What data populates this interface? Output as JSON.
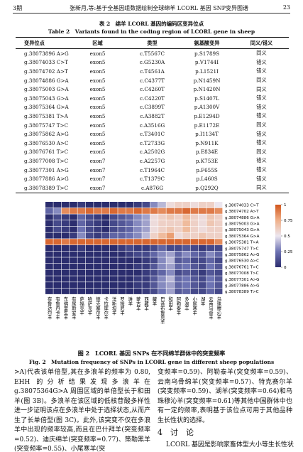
{
  "header": {
    "issue": "3期",
    "running_title": "张新月,等:基于全基因组数据绘制全球绵羊 LCORL 基因 SNP变异图谱",
    "page": "23"
  },
  "table": {
    "title_zh": "表 2　绵羊 LCORL 基因的编码区变异位点",
    "title_en": "Table 2　Variants found in the coding region of LCORL gene in sheep",
    "columns": [
      "变异位点",
      "区域",
      "类型",
      "氨基酸变异",
      "同义/错义"
    ],
    "rows": [
      [
        "g.38073896 A>G",
        "exon5",
        "c.T5567C",
        "p.S1789S",
        "同义"
      ],
      [
        "g.38074033 C>T",
        "exon5",
        "c.G5230A",
        "p.V1744I",
        "错义"
      ],
      [
        "g.38074702 A>T",
        "exon5",
        "c.T4561A",
        "p.L1521I",
        "错义"
      ],
      [
        "g.38074886 G>A",
        "exon5",
        "c.C4377T",
        "p.N1459N",
        "同义"
      ],
      [
        "g.38075003 G>A",
        "exon5",
        "c.C4260T",
        "p.N1420N",
        "同义"
      ],
      [
        "g.38075043 G>A",
        "exon5",
        "c.C4220T",
        "p.S1407L",
        "错义"
      ],
      [
        "g.38075364 G>A",
        "exon5",
        "c.C3899T",
        "p.A1300V",
        "错义"
      ],
      [
        "g.38075381 T>A",
        "exon5",
        "c.A3882T",
        "p.E1294D",
        "错义"
      ],
      [
        "g.38075747 T>C",
        "exon5",
        "c.A3516G",
        "p.E1172E",
        "同义"
      ],
      [
        "g.38075862 A>G",
        "exon5",
        "c.T3401C",
        "p.I1134T",
        "错义"
      ],
      [
        "g.38076530 A>C",
        "exon5",
        "c.T2733G",
        "p.N911K",
        "错义"
      ],
      [
        "g.38076761 T>C",
        "exon5",
        "c.A2502G",
        "p.E834E",
        "同义"
      ],
      [
        "g.38077008 T>C",
        "exon7",
        "c.A2257G",
        "p.K753E",
        "错义"
      ],
      [
        "g.38077301 A>G",
        "exon7",
        "c.T1964C",
        "p.F655S",
        "错义"
      ],
      [
        "g.38077886 A>G",
        "exon7",
        "c.T1379C",
        "p.L460S",
        "错义"
      ],
      [
        "g.38078389 T>C",
        "exon7",
        "c.A876G",
        "p.Q292Q",
        "同义"
      ]
    ]
  },
  "figure": {
    "type": "heatmap",
    "rows": [
      "g.38074033 C>T",
      "g.38074702 A>T",
      "g.38074886 G>A",
      "g.38075003 G>A",
      "g.38075043 G>A",
      "g.38075364 G>A",
      "g.38075381 T>A",
      "g.38075747 T>C",
      "g.38075862 A>G",
      "g.38076530 A>C",
      "g.38076761 T>C",
      "g.38077008 T>C",
      "g.38077301 A>G",
      "g.38077886 A>G",
      "g.38078389 T>C"
    ],
    "columns": [
      "有鲁达尔羊",
      "有鲁丹卡羊",
      "东佛里生羊",
      "有尾斯安羊",
      "萨福克羊",
      "哈萨克羊",
      "德克塞尔羊",
      "卡拉库尔羊",
      "洋斯坦羊",
      "罗姆尼羊",
      "滩羊",
      "蒙古羊",
      "西藏羊",
      "藏羊",
      "巴音布鲁克羊",
      "和田羊",
      "阿勒泰羊",
      "多浪羊",
      "小尾寒羊",
      "湖羊",
      "云南乌骨羊",
      "乌珠穆沁羊"
    ],
    "values": [
      [
        0,
        0,
        0,
        0,
        0.05,
        0,
        0,
        0,
        0,
        0,
        0,
        0.05,
        0.1,
        0.3,
        0.4,
        0.55,
        0.6,
        0.6,
        0.55,
        0.6,
        0.6,
        0.5
      ],
      [
        0.2,
        0.3,
        0.85,
        0.9,
        0.9,
        0.95,
        0.9,
        0.9,
        0.95,
        0.9,
        0.9,
        0.95,
        0.9,
        0.9,
        0.85,
        0.9,
        0.9,
        0.95,
        0.9,
        0.9,
        0.9,
        0.85
      ],
      [
        0,
        0.1,
        0.05,
        0,
        0.2,
        0.1,
        0.05,
        0,
        0.1,
        0.15,
        0.2,
        0.3,
        0.35,
        0.55,
        0.6,
        0.65,
        0.6,
        0.7,
        0.6,
        0.55,
        0.65,
        0.6
      ],
      [
        0,
        0.1,
        0.05,
        0,
        0.2,
        0.1,
        0.05,
        0,
        0.1,
        0.15,
        0.2,
        0.3,
        0.35,
        0.55,
        0.6,
        0.6,
        0.6,
        0.7,
        0.6,
        0.55,
        0.65,
        0.6
      ],
      [
        0,
        0.1,
        0.05,
        0,
        0.25,
        0.1,
        0.05,
        0,
        0.1,
        0.15,
        0.2,
        0.3,
        0.35,
        0.55,
        0.6,
        0.65,
        0.6,
        0.7,
        0.6,
        0.55,
        0.6,
        0.6
      ],
      [
        0,
        0,
        0,
        0.05,
        0.3,
        0.1,
        0.05,
        0.1,
        0.2,
        0.2,
        0.25,
        0.3,
        0.4,
        0.6,
        0.7,
        0.8,
        0.55,
        0.6,
        0.6,
        0.65,
        0.6,
        0.6
      ],
      [
        0.95,
        0.95,
        0.9,
        0.95,
        0.95,
        0.95,
        0.95,
        0.95,
        0.95,
        0.95,
        0.95,
        0.95,
        0.95,
        0.95,
        0.95,
        0.95,
        0.95,
        0.95,
        0.95,
        0.95,
        0.95,
        0.85
      ],
      [
        0,
        0,
        0,
        0,
        0.05,
        0,
        0,
        0,
        0,
        0.05,
        0.1,
        0.05,
        0.05,
        0.1,
        0.2,
        0.1,
        0.1,
        0.15,
        0.1,
        0.05,
        0.1,
        0.1
      ],
      [
        0,
        0,
        0,
        0,
        0,
        0,
        0,
        0,
        0,
        0,
        0.05,
        0.1,
        0.1,
        0.2,
        0.3,
        0.35,
        0.2,
        0.3,
        0.2,
        0.15,
        0.3,
        0.2
      ],
      [
        0,
        0,
        0,
        0,
        0,
        0,
        0,
        0,
        0,
        0,
        0,
        0,
        0.05,
        0.1,
        0.3,
        0.4,
        0.15,
        0.2,
        0.1,
        0.1,
        0.2,
        0.1
      ],
      [
        0,
        0,
        0,
        0,
        0,
        0,
        0,
        0,
        0,
        0,
        0,
        0.05,
        0.05,
        0.15,
        0.3,
        0.35,
        0.2,
        0.25,
        0.15,
        0.1,
        0.25,
        0.15
      ],
      [
        0,
        0,
        0,
        0,
        0,
        0,
        0,
        0,
        0,
        0,
        0,
        0,
        0.05,
        0.1,
        0.2,
        0.3,
        0.1,
        0.15,
        0.1,
        0.05,
        0.15,
        0.1
      ],
      [
        0,
        0,
        0,
        0,
        0,
        0,
        0,
        0,
        0,
        0,
        0,
        0.05,
        0.05,
        0.15,
        0.3,
        0.4,
        0.2,
        0.25,
        0.15,
        0.1,
        0.25,
        0.15
      ],
      [
        0,
        0,
        0,
        0,
        0,
        0,
        0,
        0,
        0,
        0,
        0,
        0.05,
        0.05,
        0.15,
        0.3,
        0.35,
        0.2,
        0.25,
        0.15,
        0.1,
        0.25,
        0.15
      ],
      [
        0,
        0,
        0,
        0,
        0,
        0,
        0,
        0,
        0,
        0,
        0,
        0,
        0.05,
        0.1,
        0.25,
        0.35,
        0.15,
        0.2,
        0.1,
        0.1,
        0.2,
        0.1
      ]
    ],
    "colorbar_ticks": [
      1,
      0.75,
      0.5,
      0.25,
      0
    ],
    "caption_zh": "图 2　LCORL 基因 SNPs 在不同绵羊群体中的突变频率",
    "caption_en": "Fig. 2　Mutation frequency of SNPs in LCORL gene in different sheep populations"
  },
  "body": {
    "left": ">A)代表该单倍型,其在多浪羊的频率为 0.80, EHH 的分析结果发现多浪羊在 g.38075364G>A 周围区域的单倍型长于和田羊(图 3B)。多浪羊在该区域的低核苷酸多样性进一步证明该点在多浪羊中处于选择状态,从而产生了长单倍型(图 3C)。此外,该突变不仅在多浪羊中出现的频率较高,而且在巴什拜羊(突变频率=0.52)、迪庆绵羊(突变频率=0.77)、策勒黑羊(突变频率=0.55)、小尾寒羊(突",
    "right": "变频率=0.59)、阿勒泰羊(突变频率=0.59)、云南乌骨绵羊(突变频率=0.57)、特克赛尔羊(突变频率=0.59)、湖羊(突变频率=0.64)和乌珠穆沁羊(突变频率=0.61)等其他中国群体中也有一定的频率,表明基于该位点可用于其他品种生长性状的选择。",
    "section": "4　讨　论",
    "section_text": "LCORL 基因是影响家畜体型大小等生长性状"
  }
}
